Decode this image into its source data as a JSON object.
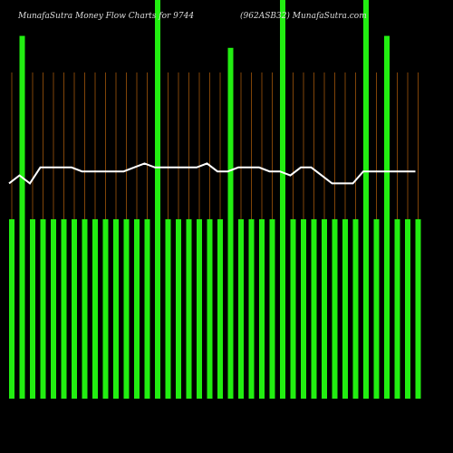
{
  "chart_data": {
    "type": "bar-line",
    "title": "MunafaSutra  Money Flow  Charts for 9744",
    "subtitle": "(962ASB32) MunafaSutra.com",
    "ylim": [
      0,
      100
    ],
    "series": [
      {
        "color": "#22ee11",
        "values": [
          45,
          91,
          45,
          45,
          45,
          45,
          45,
          45,
          45,
          45,
          45,
          45,
          45,
          45,
          100,
          45,
          45,
          45,
          45,
          45,
          45,
          88,
          45,
          45,
          45,
          45,
          100,
          45,
          45,
          45,
          45,
          45,
          45,
          45,
          100,
          45,
          91,
          45,
          45,
          45
        ]
      },
      {
        "color": "#ffffff",
        "values": [
          54,
          56,
          54,
          58,
          58,
          58,
          58,
          57,
          57,
          57,
          57,
          57,
          58,
          59,
          58,
          58,
          58,
          58,
          58,
          59,
          57,
          57,
          58,
          58,
          58,
          57,
          57,
          56,
          58,
          58,
          56,
          54,
          54,
          54,
          57,
          57,
          57,
          57,
          57,
          57
        ]
      }
    ]
  }
}
